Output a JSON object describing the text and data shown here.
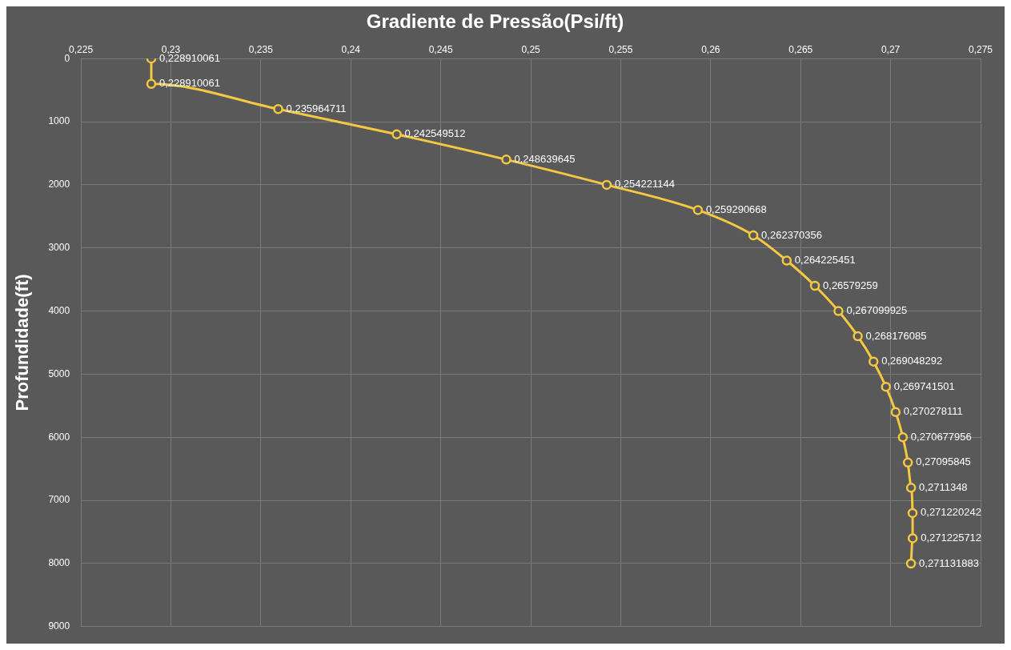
{
  "chart_data": {
    "type": "line",
    "orientation": "horizontal",
    "title": "Gradiente de Pressão(Psi/ft)",
    "ylabel": "Profundidade(ft)",
    "x": [
      0,
      400,
      800,
      1200,
      1600,
      2000,
      2400,
      2800,
      3200,
      3600,
      4000,
      4400,
      4800,
      5200,
      5600,
      6000,
      6400,
      6800,
      7200,
      7600,
      8000
    ],
    "series": [
      {
        "color": "#f5c842",
        "values": [
          0.228910061,
          0.228910061,
          0.235964711,
          0.242549512,
          0.248639645,
          0.254221144,
          0.259290668,
          0.262370356,
          0.264225451,
          0.26579259,
          0.267099925,
          0.268176085,
          0.269048292,
          0.269741501,
          0.270278111,
          0.270677956,
          0.27095845,
          0.2711348,
          0.271220242,
          0.271225712,
          0.271131883
        ],
        "value_labels": [
          "0,228910061",
          "0,228910061",
          "0,235964711",
          "0,242549512",
          "0,248639645",
          "0,254221144",
          "0,259290668",
          "0,262370356",
          "0,264225451",
          "0,26579259",
          "0,267099925",
          "0,268176085",
          "0,269048292",
          "0,269741501",
          "0,270278111",
          "0,270677956",
          "0,27095845",
          "0,2711348",
          "0,271220242",
          "0,271225712",
          "0,271131883"
        ]
      }
    ],
    "xlim": [
      0.225,
      0.275
    ],
    "xticks": [
      {
        "value": 0.225,
        "label": "0,225"
      },
      {
        "value": 0.23,
        "label": "0,23"
      },
      {
        "value": 0.235,
        "label": "0,235"
      },
      {
        "value": 0.24,
        "label": "0,24"
      },
      {
        "value": 0.245,
        "label": "0,245"
      },
      {
        "value": 0.25,
        "label": "0,25"
      },
      {
        "value": 0.255,
        "label": "0,255"
      },
      {
        "value": 0.26,
        "label": "0,26"
      },
      {
        "value": 0.265,
        "label": "0,265"
      },
      {
        "value": 0.27,
        "label": "0,27"
      },
      {
        "value": 0.275,
        "label": "0,275"
      }
    ],
    "ylim": [
      9000,
      0
    ],
    "yticks": [
      0,
      1000,
      2000,
      3000,
      4000,
      5000,
      6000,
      7000,
      8000,
      9000
    ],
    "grid": true,
    "legend": false,
    "marker": "circle",
    "line_style": "solid"
  }
}
